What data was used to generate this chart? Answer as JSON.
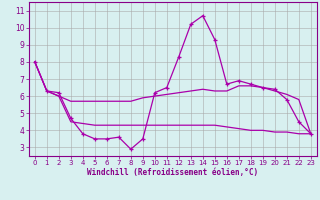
{
  "xlabel": "Windchill (Refroidissement éolien,°C)",
  "x": [
    0,
    1,
    2,
    3,
    4,
    5,
    6,
    7,
    8,
    9,
    10,
    11,
    12,
    13,
    14,
    15,
    16,
    17,
    18,
    19,
    20,
    21,
    22,
    23
  ],
  "line1": [
    8.0,
    6.3,
    6.2,
    4.7,
    3.8,
    3.5,
    3.5,
    3.6,
    2.9,
    3.5,
    6.2,
    6.5,
    8.3,
    10.2,
    10.7,
    9.3,
    6.7,
    6.9,
    6.7,
    6.5,
    6.4,
    5.8,
    4.5,
    3.8
  ],
  "line2": [
    8.0,
    6.3,
    6.0,
    5.7,
    5.7,
    5.7,
    5.7,
    5.7,
    5.7,
    5.9,
    6.0,
    6.1,
    6.2,
    6.3,
    6.4,
    6.3,
    6.3,
    6.6,
    6.6,
    6.5,
    6.3,
    6.1,
    5.8,
    3.8
  ],
  "line3": [
    8.0,
    6.3,
    6.0,
    4.5,
    4.4,
    4.3,
    4.3,
    4.3,
    4.3,
    4.3,
    4.3,
    4.3,
    4.3,
    4.3,
    4.3,
    4.3,
    4.2,
    4.1,
    4.0,
    4.0,
    3.9,
    3.9,
    3.8,
    3.8
  ],
  "line_color": "#aa00aa",
  "bg_color": "#d8f0f0",
  "grid_color": "#aaaaaa",
  "axis_color": "#880088",
  "ylim": [
    2.5,
    11.5
  ],
  "xlim": [
    -0.5,
    23.5
  ],
  "yticks": [
    3,
    4,
    5,
    6,
    7,
    8,
    9,
    10,
    11
  ],
  "xticks": [
    0,
    1,
    2,
    3,
    4,
    5,
    6,
    7,
    8,
    9,
    10,
    11,
    12,
    13,
    14,
    15,
    16,
    17,
    18,
    19,
    20,
    21,
    22,
    23
  ]
}
